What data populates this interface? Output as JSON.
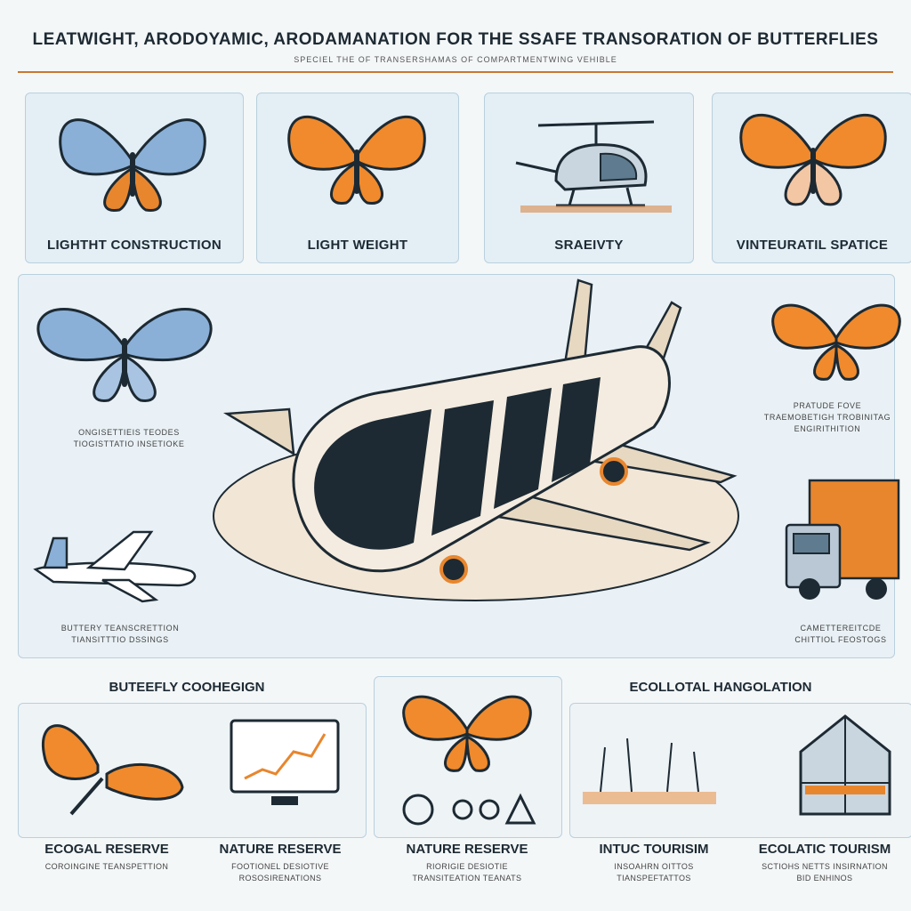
{
  "header": {
    "title": "LEATWIGHT,  ARODOYAMIC, ARODAMANATION FOR THE SSAFE TRANSORATION OF BUTTERFLIES",
    "subtitle": "SPECIEL THE OF TRANSERSHAMAS OF COMPARTMENTWING VEHIBLE"
  },
  "top_panels": [
    {
      "label": "LIGHTHT CONSTRUCTION",
      "icon": "blue-butterfly-icon"
    },
    {
      "label": "LIGHT WEIGHT",
      "icon": "monarch-butterfly-icon"
    },
    {
      "label": "SRAEIVTY",
      "icon": "helicopter-icon"
    },
    {
      "label": "VINTEURATIL SPATICE",
      "icon": "monarch-butterfly-icon"
    }
  ],
  "side_captions": {
    "left_mid": [
      "ONGISETTIEIS TEODES",
      "TIOGISTTATIO INSETIOKE"
    ],
    "left_low": [
      "BUTTERY TEANSCRETTION",
      "TIANSITTTIO DSSINGS"
    ],
    "right_mid": [
      "PRATUDE FOVE",
      "TRAEMOBETIGH TROBINITAG",
      "ENGIRITHITION"
    ],
    "right_low": [
      "CAMETTEREITCDE",
      "CHITTIOL FEOSTOGS"
    ]
  },
  "section_labels": {
    "butterfly_connection": "BUTEEFLY COOHEGIGN",
    "ecological_hangulation": "ECOLLOTAL HANGOLATION"
  },
  "bottom_panels": [
    {
      "label": "ECOGAL RESERVE",
      "caption": [
        "COROINGINE TEANSPETTION"
      ]
    },
    {
      "label": "NATURE RESERVE",
      "caption": [
        "FOOTIONEL DESIOTIVE",
        "ROSOSIRENATIONS"
      ]
    },
    {
      "label": "NATURE  RESERVE",
      "caption": [
        "RIORIGIE DESIOTIE",
        "TRANSITEATION TEANATS"
      ]
    },
    {
      "label": "INTUC TOURISIM",
      "caption": [
        "INSOAHRN OITTOS",
        "TIANSPEFTATTOS"
      ]
    },
    {
      "label": "ECOLATIC TOURISM",
      "caption": [
        "SCTIOHS NETTS INSIRNATION",
        "BID ENHINOS"
      ]
    }
  ],
  "colors": {
    "accent": "#e8862e",
    "panel": "#e3eef5",
    "ink": "#1d2a33",
    "butterfly_blue": "#8ab0d8"
  }
}
